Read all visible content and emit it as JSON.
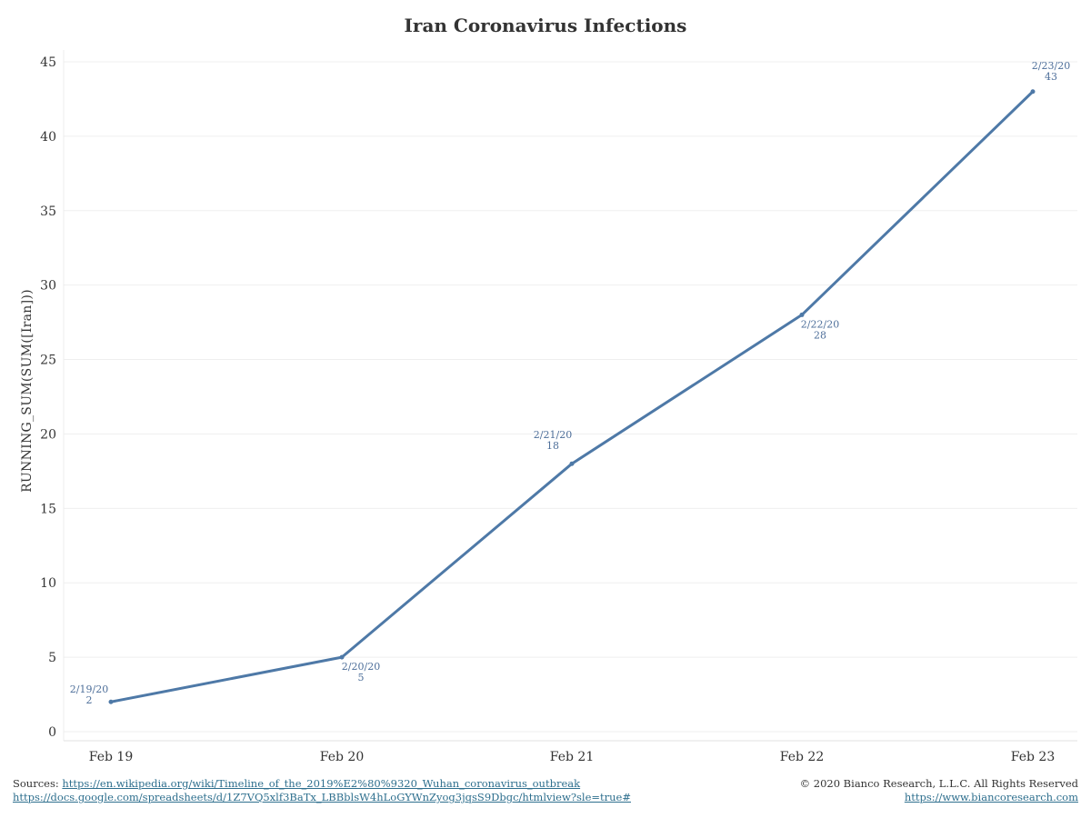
{
  "chart_data": {
    "type": "line",
    "title": "Iran Coronavirus Infections",
    "xlabel": "",
    "ylabel": "RUNNING_SUM(SUM([Iran]))",
    "categories": [
      "Feb 19",
      "Feb 20",
      "Feb 21",
      "Feb 22",
      "Feb 23"
    ],
    "ylim": [
      0,
      45
    ],
    "yticks": [
      0,
      5,
      10,
      15,
      20,
      25,
      30,
      35,
      40,
      45
    ],
    "grid": true,
    "series": [
      {
        "values": [
          2,
          5,
          18,
          28,
          43
        ],
        "data_labels": [
          {
            "date": "2/19/20",
            "value": "2"
          },
          {
            "date": "2/20/20",
            "value": "5"
          },
          {
            "date": "2/21/20",
            "value": "18"
          },
          {
            "date": "2/22/20",
            "value": "28"
          },
          {
            "date": "2/23/20",
            "value": "43"
          }
        ]
      }
    ],
    "colors": {
      "line": "#4e79a7",
      "label": "#4e6f9a",
      "grid": "#efefef"
    }
  },
  "footer": {
    "sources_label": "Sources:",
    "source_1": "https://en.wikipedia.org/wiki/Timeline_of_the_2019%E2%80%9320_Wuhan_coronavirus_outbreak",
    "source_2": "https://docs.google.com/spreadsheets/d/1Z7VQ5xlf3BaTx_LBBblsW4hLoGYWnZyog3jqsS9Dbgc/htmlview?sle=true#",
    "copyright": "© 2020 Bianco Research, L.L.C. All Rights Reserved",
    "website": "https://www.biancoresearch.com"
  }
}
